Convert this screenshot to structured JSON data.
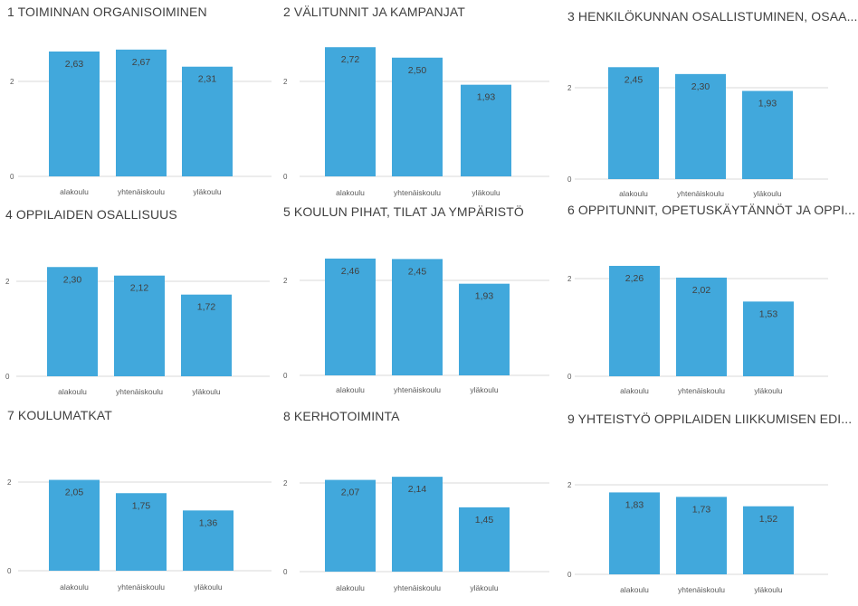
{
  "chart_data": [
    {
      "type": "bar",
      "title": "1 TOIMINNAN ORGANISOIMINEN",
      "categories": [
        "alakoulu",
        "yhtenäiskoulu",
        "yläkoulu"
      ],
      "values": [
        2.63,
        2.67,
        2.31
      ],
      "value_labels": [
        "2,63",
        "2,67",
        "2,31"
      ],
      "ticks": [
        "0",
        "2"
      ],
      "ylim": [
        0,
        3.5
      ]
    },
    {
      "type": "bar",
      "title": "2 VÄLITUNNIT JA KAMPANJAT",
      "categories": [
        "alakoulu",
        "yhtenäiskoulu",
        "yläkoulu"
      ],
      "values": [
        2.72,
        2.5,
        1.93
      ],
      "value_labels": [
        "2,72",
        "2,50",
        "1,93"
      ],
      "ticks": [
        "0",
        "2"
      ],
      "ylim": [
        0,
        3.5
      ]
    },
    {
      "type": "bar",
      "title": "3 HENKILÖKUNNAN OSALLISTUMINEN, OSAA...",
      "categories": [
        "alakoulu",
        "yhtenäiskoulu",
        "yläkoulu"
      ],
      "values": [
        2.45,
        2.3,
        1.93
      ],
      "value_labels": [
        "2,45",
        "2,30",
        "1,93"
      ],
      "ticks": [
        "0",
        "2"
      ],
      "ylim": [
        0,
        3.1
      ]
    },
    {
      "type": "bar",
      "title": "4 OPPILAIDEN OSALLISUUS",
      "categories": [
        "alakoulu",
        "yhtenäiskoulu",
        "yläkoulu"
      ],
      "values": [
        2.3,
        2.12,
        1.72
      ],
      "value_labels": [
        "2,30",
        "2,12",
        "1,72"
      ],
      "ticks": [
        "0",
        "2"
      ],
      "ylim": [
        0,
        3.0
      ]
    },
    {
      "type": "bar",
      "title": "5 KOULUN PIHAT, TILAT JA YMPÄRISTÖ",
      "categories": [
        "alakoulu",
        "yhtenäiskoulu",
        "yläkoulu"
      ],
      "values": [
        2.46,
        2.45,
        1.93
      ],
      "value_labels": [
        "2,46",
        "2,45",
        "1,93"
      ],
      "ticks": [
        "0",
        "2"
      ],
      "ylim": [
        0,
        3.1
      ]
    },
    {
      "type": "bar",
      "title": "6 OPPITUNNIT, OPETUSKÄYTÄNNÖT JA OPPI...",
      "categories": [
        "alakoulu",
        "yhtenäiskoulu",
        "yläkoulu"
      ],
      "values": [
        2.26,
        2.02,
        1.53
      ],
      "value_labels": [
        "2,26",
        "2,02",
        "1,53"
      ],
      "ticks": [
        "0",
        "2"
      ],
      "ylim": [
        0,
        2.9
      ]
    },
    {
      "type": "bar",
      "title": "7 KOULUMATKAT",
      "categories": [
        "alakoulu",
        "yhtenäiskoulu",
        "yläkoulu"
      ],
      "values": [
        2.05,
        1.75,
        1.36
      ],
      "value_labels": [
        "2,05",
        "1,75",
        "1,36"
      ],
      "ticks": [
        "0",
        "2"
      ],
      "ylim": [
        0,
        2.6
      ]
    },
    {
      "type": "bar",
      "title": "8 KERHOTOIMINTA",
      "categories": [
        "alakoulu",
        "yhtenäiskoulu",
        "yläkoulu"
      ],
      "values": [
        2.07,
        2.14,
        1.45
      ],
      "value_labels": [
        "2,07",
        "2,14",
        "1,45"
      ],
      "ticks": [
        "0",
        "2"
      ],
      "ylim": [
        0,
        2.6
      ]
    },
    {
      "type": "bar",
      "title": "9 YHTEISTYÖ OPPILAIDEN LIIKKUMISEN EDI...",
      "categories": [
        "alakoulu",
        "yhtenäiskoulu",
        "yläkoulu"
      ],
      "values": [
        1.83,
        1.73,
        1.52
      ],
      "value_labels": [
        "1,83",
        "1,73",
        "1,52"
      ],
      "ticks": [
        "0",
        "2"
      ],
      "ylim": [
        0,
        2.4
      ]
    }
  ]
}
